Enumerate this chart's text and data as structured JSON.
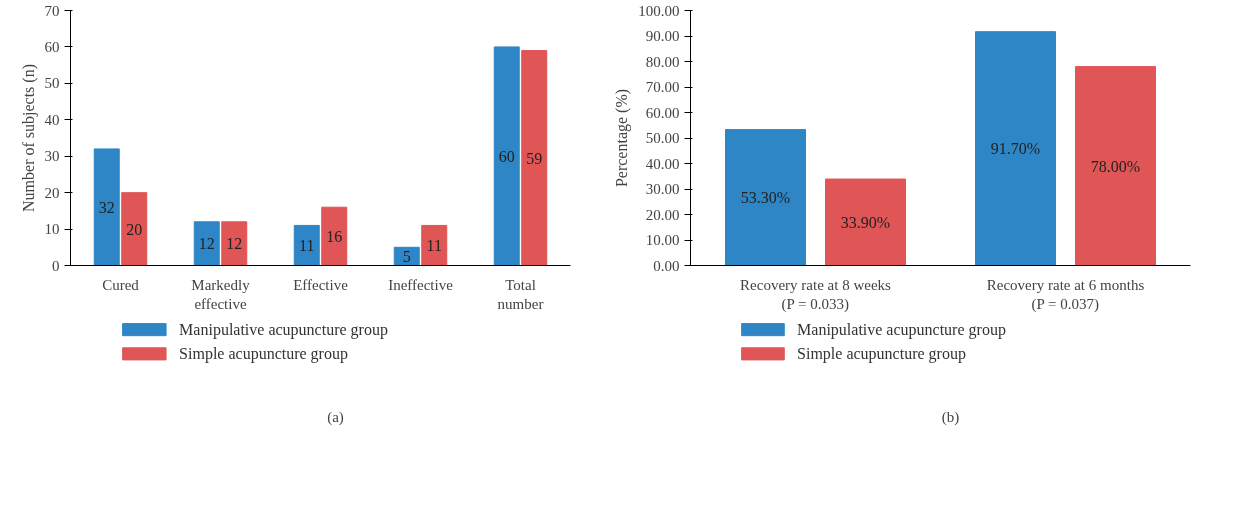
{
  "chart_data": [
    {
      "type": "bar",
      "ylabel": "Number of subjects (n)",
      "categories": [
        "Cured",
        "Markedly\neffective",
        "Effective",
        "Ineffective",
        "Total\nnumber"
      ],
      "series": [
        {
          "name": "Manipulative acupuncture group",
          "color": "#2e86c6",
          "values": [
            32,
            12,
            11,
            5,
            60
          ]
        },
        {
          "name": "Simple acupuncture group",
          "color": "#e05555",
          "values": [
            20,
            12,
            16,
            11,
            59
          ]
        }
      ],
      "ylim": [
        0,
        70
      ],
      "yticks": [
        0,
        10,
        20,
        30,
        40,
        50,
        60,
        70
      ],
      "grid": false,
      "legend": "bottom",
      "data_labels": true,
      "annotations": [
        "(a)"
      ]
    },
    {
      "type": "bar",
      "ylabel": "Percentage (%)",
      "categories": [
        "Recovery rate at 8 weeks\n(P = 0.033)",
        "Recovery rate at 6 months\n(P = 0.037)"
      ],
      "series": [
        {
          "name": "Manipulative acupuncture group",
          "color": "#2e86c6",
          "values": [
            53.3,
            91.7
          ],
          "value_labels": [
            "53.30%",
            "91.70%"
          ]
        },
        {
          "name": "Simple acupuncture group",
          "color": "#e05555",
          "values": [
            33.9,
            78.0
          ],
          "value_labels": [
            "33.90%",
            "78.00%"
          ]
        }
      ],
      "ylim": [
        0,
        100
      ],
      "yticks": [
        {
          "value": 0,
          "label": "0.00"
        },
        {
          "value": 10,
          "label": "10.00"
        },
        {
          "value": 20,
          "label": "20.00"
        },
        {
          "value": 30,
          "label": "30.00"
        },
        {
          "value": 40,
          "label": "40.00"
        },
        {
          "value": 50,
          "label": "50.00"
        },
        {
          "value": 60,
          "label": "60.00"
        },
        {
          "value": 70,
          "label": "70.00"
        },
        {
          "value": 80,
          "label": "80.00"
        },
        {
          "value": 90,
          "label": "90.00"
        },
        {
          "value": 100,
          "label": "100.00"
        }
      ],
      "grid": false,
      "legend": "bottom",
      "annotations": [
        "(b)"
      ]
    }
  ]
}
